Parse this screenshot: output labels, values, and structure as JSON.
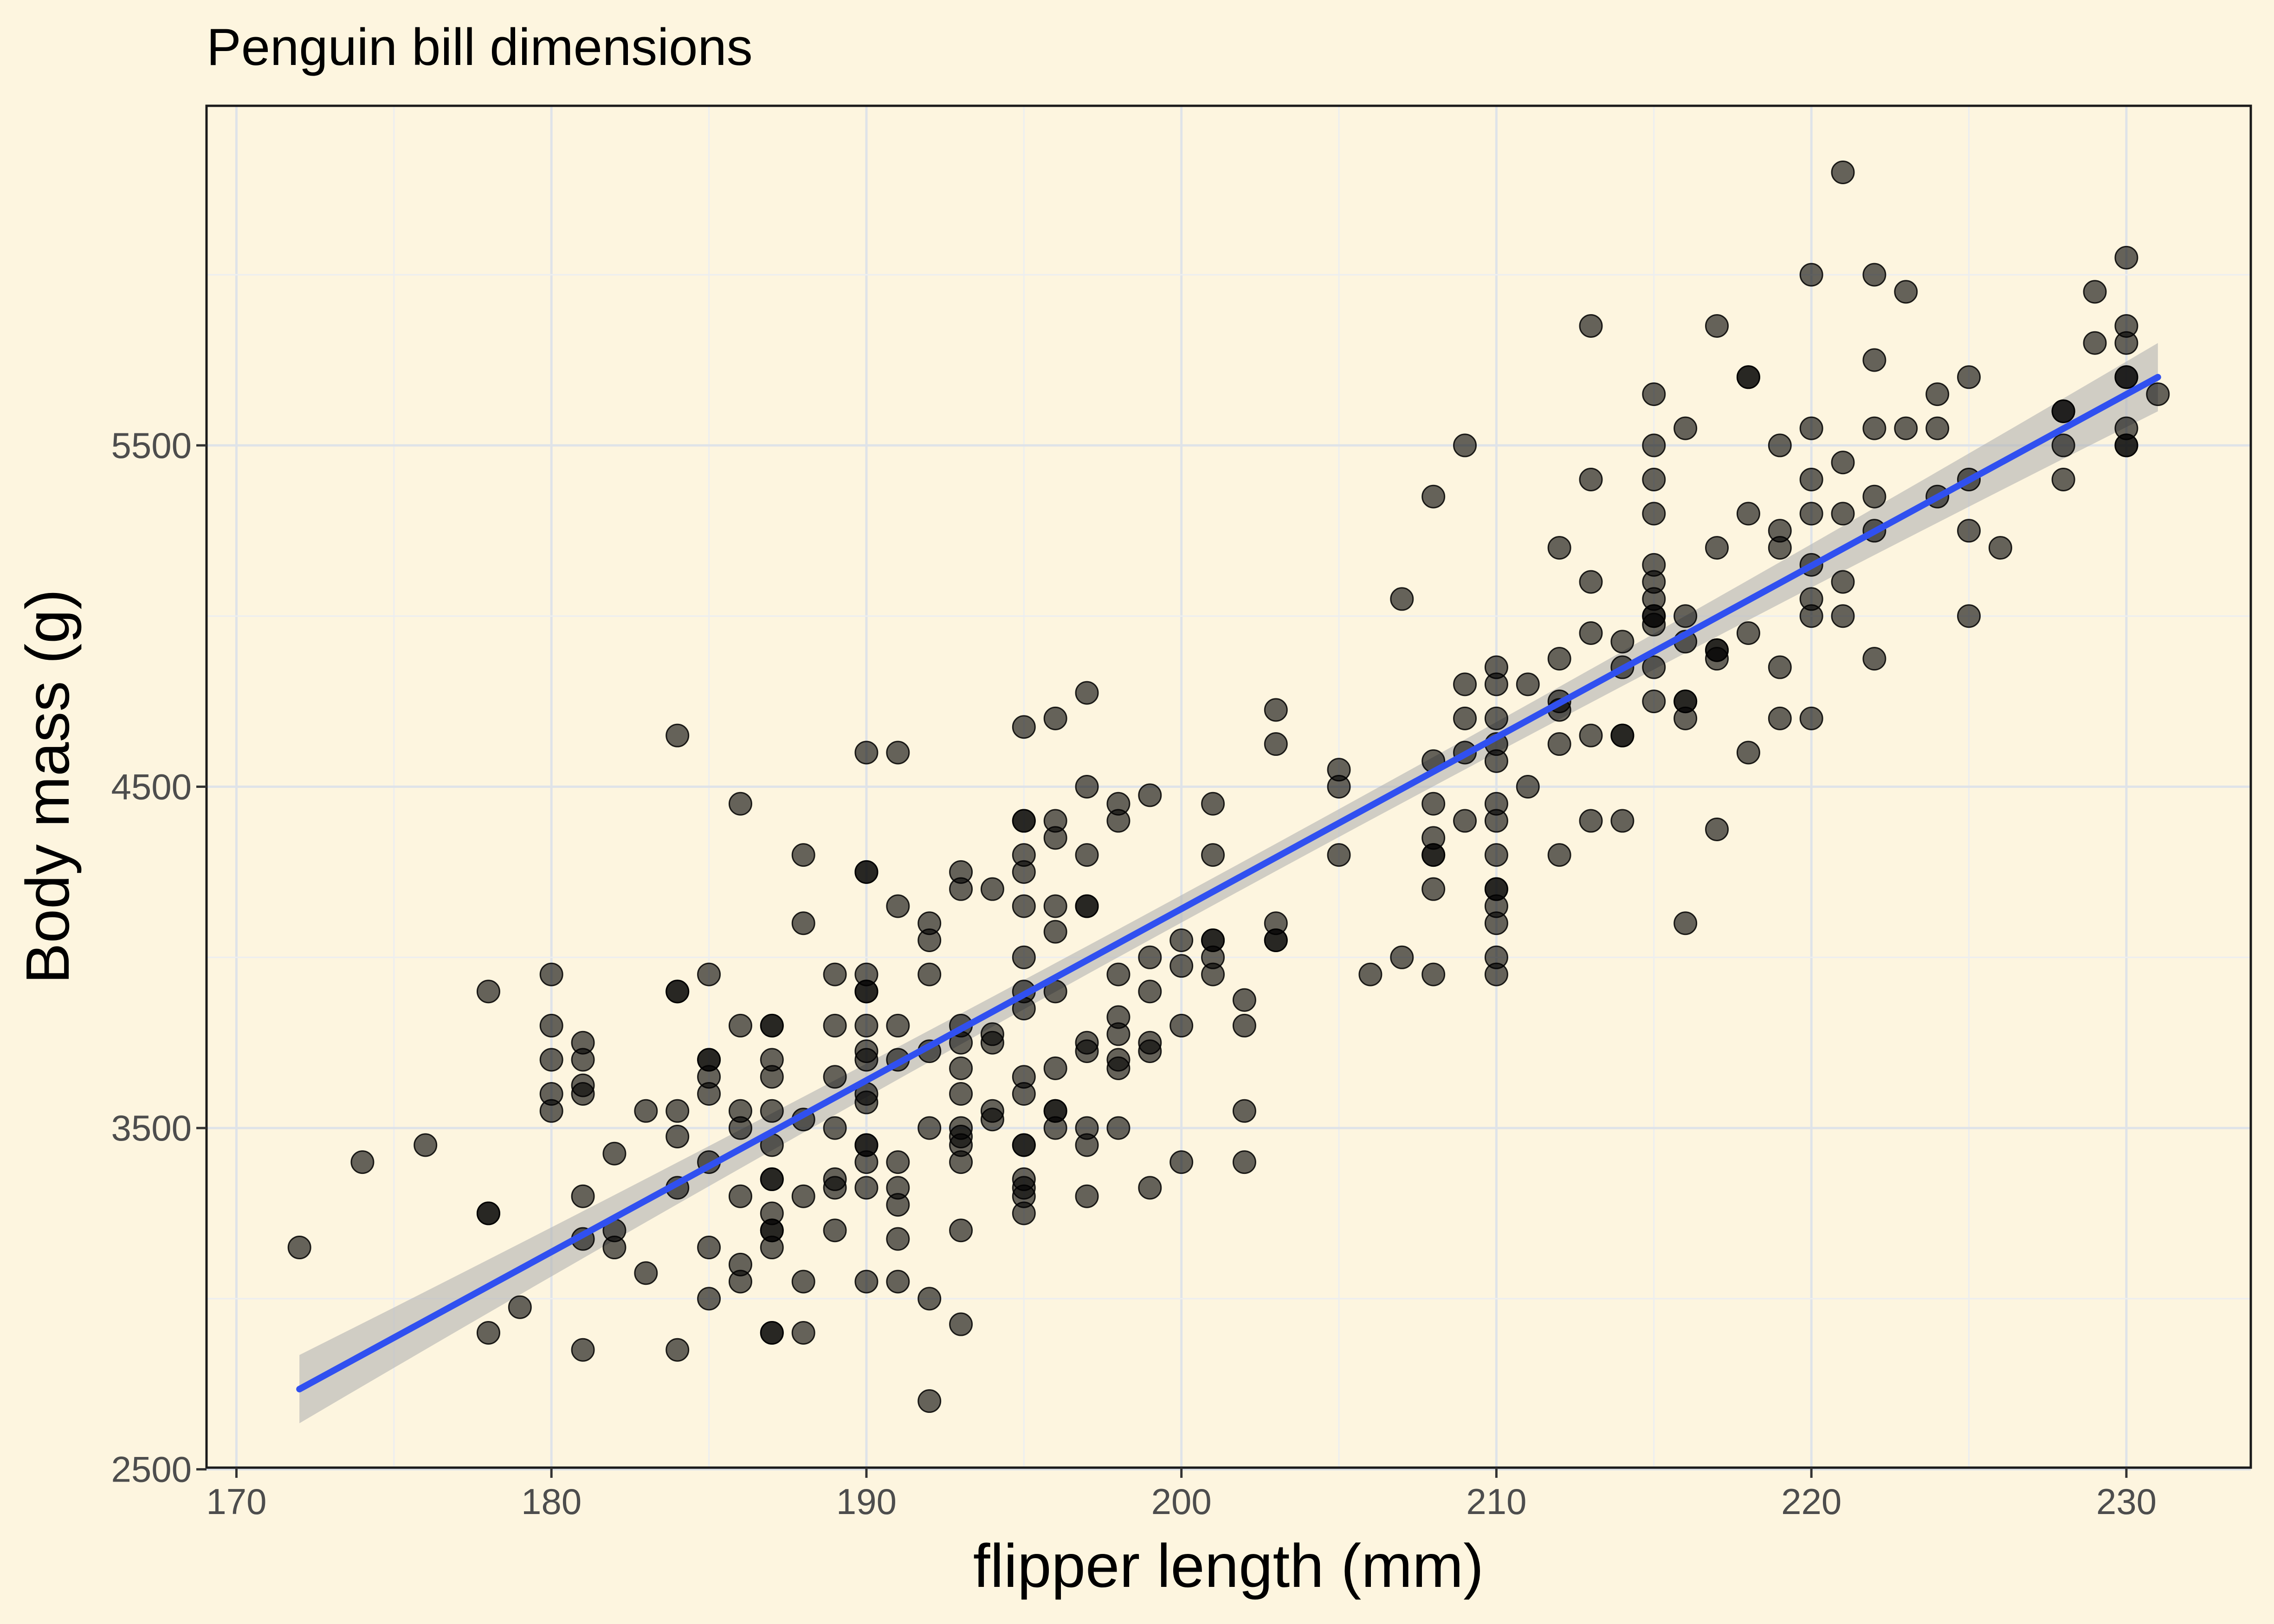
{
  "chart_data": {
    "type": "scatter",
    "title": "Penguin bill dimensions",
    "xlabel": "flipper length (mm)",
    "ylabel": "Body mass (g)",
    "xlim": [
      169.05,
      233.95
    ],
    "ylim": [
      2505,
      6495
    ],
    "x_ticks": [
      "170",
      "180",
      "190",
      "200",
      "210",
      "220",
      "230"
    ],
    "y_ticks": [
      "2500",
      "3500",
      "4500",
      "5500"
    ],
    "grid": true,
    "background": "#fdf5df",
    "point_color": "#000000",
    "point_opacity": 0.6,
    "line_color": "#3050f0",
    "band_color": "#b3b3b3",
    "fit": {
      "x_start": 172,
      "y_start": 2735,
      "x_end": 231,
      "y_end": 5700,
      "ci_halfwidth_ends": 100,
      "ci_halfwidth_mid": 40
    },
    "points": [
      [
        172,
        3150
      ],
      [
        174,
        3400
      ],
      [
        176,
        3450
      ],
      [
        178,
        3900
      ],
      [
        178,
        3250
      ],
      [
        178,
        3250
      ],
      [
        178,
        2900
      ],
      [
        179,
        2975
      ],
      [
        180,
        3950
      ],
      [
        180,
        3800
      ],
      [
        180,
        3700
      ],
      [
        180,
        3600
      ],
      [
        180,
        3550
      ],
      [
        181,
        3750
      ],
      [
        181,
        3700
      ],
      [
        181,
        3625
      ],
      [
        181,
        3600
      ],
      [
        181,
        3300
      ],
      [
        181,
        3175
      ],
      [
        181,
        2850
      ],
      [
        182,
        3425
      ],
      [
        182,
        3200
      ],
      [
        182,
        3150
      ],
      [
        183,
        3550
      ],
      [
        183,
        3075
      ],
      [
        184,
        4650
      ],
      [
        184,
        3900
      ],
      [
        184,
        3900
      ],
      [
        184,
        3550
      ],
      [
        184,
        3475
      ],
      [
        184,
        3325
      ],
      [
        184,
        2850
      ],
      [
        185,
        3950
      ],
      [
        185,
        3700
      ],
      [
        185,
        3700
      ],
      [
        185,
        3650
      ],
      [
        185,
        3600
      ],
      [
        185,
        3400
      ],
      [
        185,
        3150
      ],
      [
        185,
        3000
      ],
      [
        186,
        4450
      ],
      [
        186,
        3800
      ],
      [
        186,
        3550
      ],
      [
        186,
        3500
      ],
      [
        186,
        3300
      ],
      [
        186,
        3100
      ],
      [
        186,
        3050
      ],
      [
        187,
        3800
      ],
      [
        187,
        3800
      ],
      [
        187,
        3700
      ],
      [
        187,
        3650
      ],
      [
        187,
        3550
      ],
      [
        187,
        3450
      ],
      [
        187,
        3350
      ],
      [
        187,
        3350
      ],
      [
        187,
        3250
      ],
      [
        187,
        3200
      ],
      [
        187,
        3200
      ],
      [
        187,
        3150
      ],
      [
        187,
        2900
      ],
      [
        187,
        2900
      ],
      [
        188,
        4300
      ],
      [
        188,
        4100
      ],
      [
        188,
        3525
      ],
      [
        188,
        3300
      ],
      [
        188,
        3050
      ],
      [
        188,
        2900
      ],
      [
        189,
        3950
      ],
      [
        189,
        3800
      ],
      [
        189,
        3650
      ],
      [
        189,
        3500
      ],
      [
        189,
        3350
      ],
      [
        189,
        3325
      ],
      [
        189,
        3200
      ],
      [
        190,
        4600
      ],
      [
        190,
        4250
      ],
      [
        190,
        4250
      ],
      [
        190,
        3950
      ],
      [
        190,
        3900
      ],
      [
        190,
        3900
      ],
      [
        190,
        3800
      ],
      [
        190,
        3725
      ],
      [
        190,
        3700
      ],
      [
        190,
        3600
      ],
      [
        190,
        3575
      ],
      [
        190,
        3450
      ],
      [
        190,
        3450
      ],
      [
        190,
        3400
      ],
      [
        190,
        3325
      ],
      [
        190,
        3050
      ],
      [
        191,
        4600
      ],
      [
        191,
        4150
      ],
      [
        191,
        3800
      ],
      [
        191,
        3700
      ],
      [
        191,
        3400
      ],
      [
        191,
        3325
      ],
      [
        191,
        3275
      ],
      [
        191,
        3175
      ],
      [
        191,
        3050
      ],
      [
        192,
        4100
      ],
      [
        192,
        4050
      ],
      [
        192,
        3950
      ],
      [
        192,
        3725
      ],
      [
        192,
        3500
      ],
      [
        192,
        3000
      ],
      [
        192,
        2700
      ],
      [
        193,
        4250
      ],
      [
        193,
        4200
      ],
      [
        193,
        3800
      ],
      [
        193,
        3750
      ],
      [
        193,
        3675
      ],
      [
        193,
        3600
      ],
      [
        193,
        3500
      ],
      [
        193,
        3475
      ],
      [
        193,
        3450
      ],
      [
        193,
        3400
      ],
      [
        193,
        3200
      ],
      [
        193,
        2925
      ],
      [
        194,
        4200
      ],
      [
        194,
        3775
      ],
      [
        194,
        3750
      ],
      [
        194,
        3550
      ],
      [
        194,
        3525
      ],
      [
        195,
        4675
      ],
      [
        195,
        4400
      ],
      [
        195,
        4400
      ],
      [
        195,
        4300
      ],
      [
        195,
        4250
      ],
      [
        195,
        4150
      ],
      [
        195,
        4000
      ],
      [
        195,
        3900
      ],
      [
        195,
        3850
      ],
      [
        195,
        3650
      ],
      [
        195,
        3600
      ],
      [
        195,
        3450
      ],
      [
        195,
        3450
      ],
      [
        195,
        3350
      ],
      [
        195,
        3325
      ],
      [
        195,
        3300
      ],
      [
        195,
        3250
      ],
      [
        196,
        4700
      ],
      [
        196,
        4400
      ],
      [
        196,
        4350
      ],
      [
        196,
        4150
      ],
      [
        196,
        4075
      ],
      [
        196,
        3900
      ],
      [
        196,
        3675
      ],
      [
        196,
        3550
      ],
      [
        196,
        3550
      ],
      [
        196,
        3500
      ],
      [
        197,
        4775
      ],
      [
        197,
        4500
      ],
      [
        197,
        4300
      ],
      [
        197,
        4150
      ],
      [
        197,
        4150
      ],
      [
        197,
        3750
      ],
      [
        197,
        3725
      ],
      [
        197,
        3500
      ],
      [
        197,
        3450
      ],
      [
        197,
        3300
      ],
      [
        198,
        4450
      ],
      [
        198,
        4400
      ],
      [
        198,
        3950
      ],
      [
        198,
        3825
      ],
      [
        198,
        3775
      ],
      [
        198,
        3700
      ],
      [
        198,
        3675
      ],
      [
        198,
        3500
      ],
      [
        199,
        4475
      ],
      [
        199,
        4000
      ],
      [
        199,
        3900
      ],
      [
        199,
        3750
      ],
      [
        199,
        3725
      ],
      [
        199,
        3325
      ],
      [
        200,
        4050
      ],
      [
        200,
        3975
      ],
      [
        200,
        3800
      ],
      [
        200,
        3400
      ],
      [
        201,
        4450
      ],
      [
        201,
        4300
      ],
      [
        201,
        4050
      ],
      [
        201,
        4050
      ],
      [
        201,
        4000
      ],
      [
        201,
        3950
      ],
      [
        202,
        3875
      ],
      [
        202,
        3800
      ],
      [
        202,
        3550
      ],
      [
        202,
        3400
      ],
      [
        203,
        4725
      ],
      [
        203,
        4625
      ],
      [
        203,
        4100
      ],
      [
        203,
        4050
      ],
      [
        203,
        4050
      ],
      [
        205,
        4550
      ],
      [
        205,
        4500
      ],
      [
        205,
        4300
      ],
      [
        206,
        3950
      ],
      [
        207,
        5050
      ],
      [
        207,
        4000
      ],
      [
        208,
        5350
      ],
      [
        208,
        4575
      ],
      [
        208,
        4450
      ],
      [
        208,
        4350
      ],
      [
        208,
        4300
      ],
      [
        208,
        4300
      ],
      [
        208,
        4200
      ],
      [
        208,
        3950
      ],
      [
        209,
        5500
      ],
      [
        209,
        4800
      ],
      [
        209,
        4700
      ],
      [
        209,
        4600
      ],
      [
        209,
        4400
      ],
      [
        210,
        4850
      ],
      [
        210,
        4800
      ],
      [
        210,
        4700
      ],
      [
        210,
        4625
      ],
      [
        210,
        4575
      ],
      [
        210,
        4450
      ],
      [
        210,
        4400
      ],
      [
        210,
        4300
      ],
      [
        210,
        4200
      ],
      [
        210,
        4200
      ],
      [
        210,
        4150
      ],
      [
        210,
        4100
      ],
      [
        210,
        4000
      ],
      [
        210,
        3950
      ],
      [
        211,
        4800
      ],
      [
        211,
        4500
      ],
      [
        212,
        5200
      ],
      [
        212,
        4875
      ],
      [
        212,
        4750
      ],
      [
        212,
        4725
      ],
      [
        212,
        4625
      ],
      [
        212,
        4300
      ],
      [
        213,
        5850
      ],
      [
        213,
        5400
      ],
      [
        213,
        5100
      ],
      [
        213,
        4950
      ],
      [
        213,
        4650
      ],
      [
        213,
        4400
      ],
      [
        214,
        4925
      ],
      [
        214,
        4850
      ],
      [
        214,
        4650
      ],
      [
        214,
        4650
      ],
      [
        214,
        4400
      ],
      [
        215,
        5650
      ],
      [
        215,
        5500
      ],
      [
        215,
        5400
      ],
      [
        215,
        5300
      ],
      [
        215,
        5150
      ],
      [
        215,
        5100
      ],
      [
        215,
        5050
      ],
      [
        215,
        5000
      ],
      [
        215,
        5000
      ],
      [
        215,
        4975
      ],
      [
        215,
        4850
      ],
      [
        215,
        4750
      ],
      [
        216,
        5550
      ],
      [
        216,
        5000
      ],
      [
        216,
        4925
      ],
      [
        216,
        4750
      ],
      [
        216,
        4750
      ],
      [
        216,
        4700
      ],
      [
        216,
        4100
      ],
      [
        217,
        5850
      ],
      [
        217,
        5200
      ],
      [
        217,
        4900
      ],
      [
        217,
        4900
      ],
      [
        217,
        4875
      ],
      [
        217,
        4375
      ],
      [
        218,
        5700
      ],
      [
        218,
        5700
      ],
      [
        218,
        5300
      ],
      [
        218,
        4950
      ],
      [
        218,
        4600
      ],
      [
        219,
        5500
      ],
      [
        219,
        5250
      ],
      [
        219,
        5200
      ],
      [
        219,
        4850
      ],
      [
        219,
        4700
      ],
      [
        220,
        6000
      ],
      [
        220,
        5550
      ],
      [
        220,
        5400
      ],
      [
        220,
        5300
      ],
      [
        220,
        5150
      ],
      [
        220,
        5050
      ],
      [
        220,
        5000
      ],
      [
        220,
        4700
      ],
      [
        221,
        6300
      ],
      [
        221,
        5450
      ],
      [
        221,
        5300
      ],
      [
        221,
        5100
      ],
      [
        221,
        5000
      ],
      [
        222,
        6000
      ],
      [
        222,
        5750
      ],
      [
        222,
        5550
      ],
      [
        222,
        5350
      ],
      [
        222,
        5250
      ],
      [
        222,
        4875
      ],
      [
        223,
        5950
      ],
      [
        223,
        5550
      ],
      [
        224,
        5650
      ],
      [
        224,
        5550
      ],
      [
        224,
        5350
      ],
      [
        225,
        5700
      ],
      [
        225,
        5400
      ],
      [
        225,
        5250
      ],
      [
        225,
        5000
      ],
      [
        226,
        5200
      ],
      [
        228,
        5600
      ],
      [
        228,
        5600
      ],
      [
        228,
        5500
      ],
      [
        228,
        5400
      ],
      [
        229,
        5950
      ],
      [
        229,
        5800
      ],
      [
        230,
        6050
      ],
      [
        230,
        5850
      ],
      [
        230,
        5800
      ],
      [
        230,
        5700
      ],
      [
        230,
        5700
      ],
      [
        230,
        5550
      ],
      [
        230,
        5500
      ],
      [
        230,
        5500
      ],
      [
        231,
        5650
      ]
    ]
  }
}
